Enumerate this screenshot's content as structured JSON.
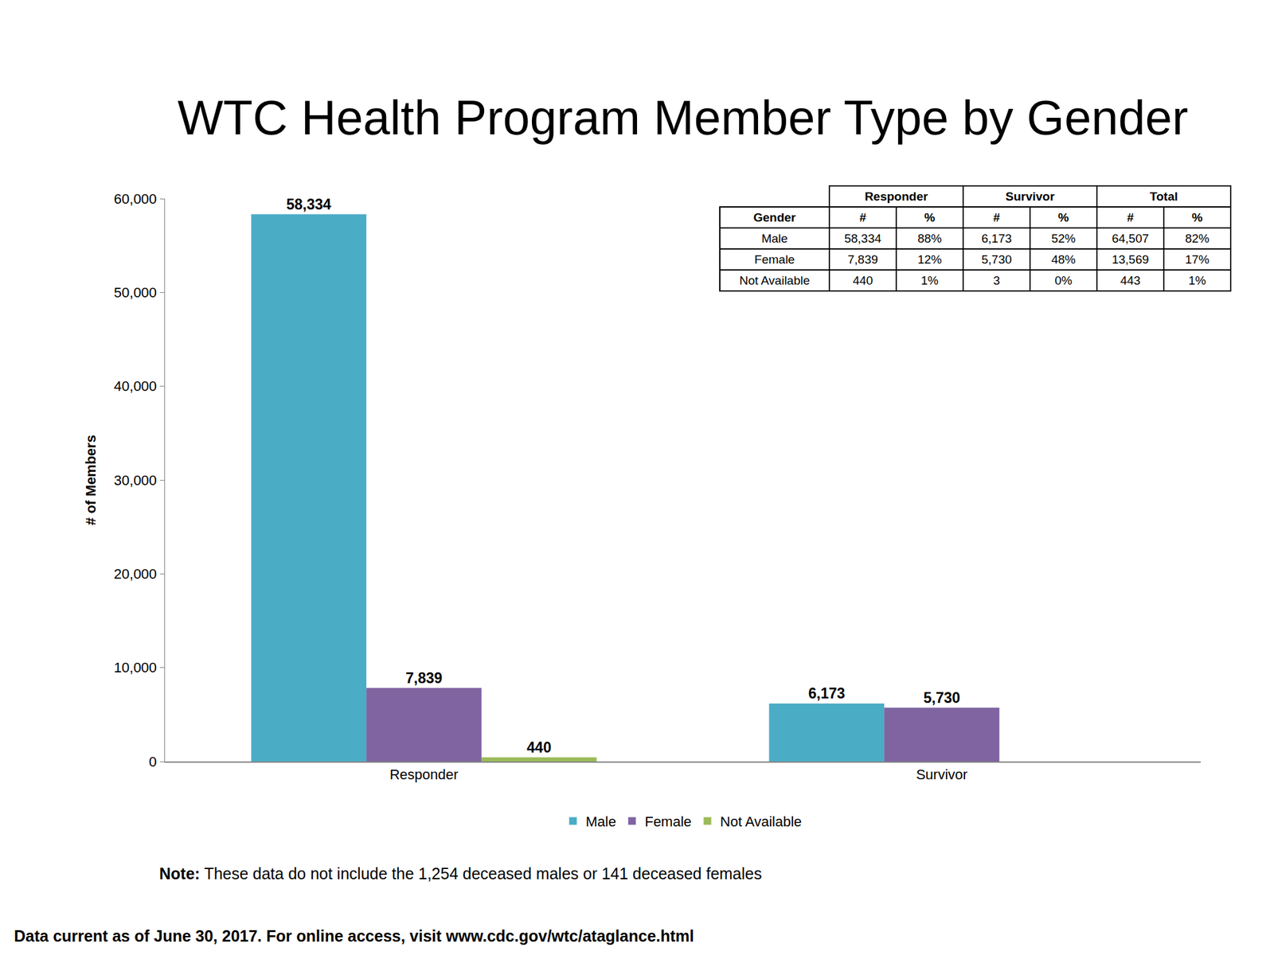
{
  "chart_data": {
    "type": "bar",
    "title": "WTC Health Program Member Type by Gender",
    "y_label": "# of Members",
    "categories": [
      "Responder",
      "Survivor"
    ],
    "series": [
      {
        "name": "Male",
        "color": "#4BACC6",
        "values": [
          58334,
          6173
        ],
        "value_labels": [
          "58,334",
          "6,173"
        ]
      },
      {
        "name": "Female",
        "color": "#8064A2",
        "values": [
          7839,
          5730
        ],
        "value_labels": [
          "7,839",
          "5,730"
        ]
      },
      {
        "name": "Not Available",
        "color": "#9BBB59",
        "values": [
          440,
          null
        ],
        "value_labels": [
          "440",
          null
        ]
      }
    ],
    "ylim": [
      0,
      60000
    ],
    "yticks": [
      0,
      {
        "value": 10000,
        "label": "10,000"
      },
      {
        "value": 20000,
        "label": "20,000"
      },
      {
        "value": 30000,
        "label": "30,000"
      },
      {
        "value": 40000,
        "label": "40,000"
      },
      {
        "value": 50000,
        "label": "50,000"
      },
      {
        "value": 60000,
        "label": "60,000"
      }
    ],
    "grid": false,
    "legend": "bottom",
    "data_labels": true
  },
  "table": {
    "column_groups": [
      "Responder",
      "Survivor",
      "Total"
    ],
    "header": [
      "Gender",
      "#",
      "%",
      "#",
      "%",
      "#",
      "%"
    ],
    "rows": [
      [
        "Male",
        "58,334",
        "88%",
        "6,173",
        "52%",
        "64,507",
        "82%"
      ],
      [
        "Female",
        "7,839",
        "12%",
        "5,730",
        "48%",
        "13,569",
        "17%"
      ],
      [
        "Not Available",
        "440",
        "1%",
        "3",
        "0%",
        "443",
        "1%"
      ]
    ]
  },
  "note": {
    "label": "Note:",
    "text": "These data do not include the 1,254 deceased males or 141 deceased females"
  },
  "source": "Data current as of June 30, 2017. For online access, visit www.cdc.gov/wtc/ataglance.html"
}
